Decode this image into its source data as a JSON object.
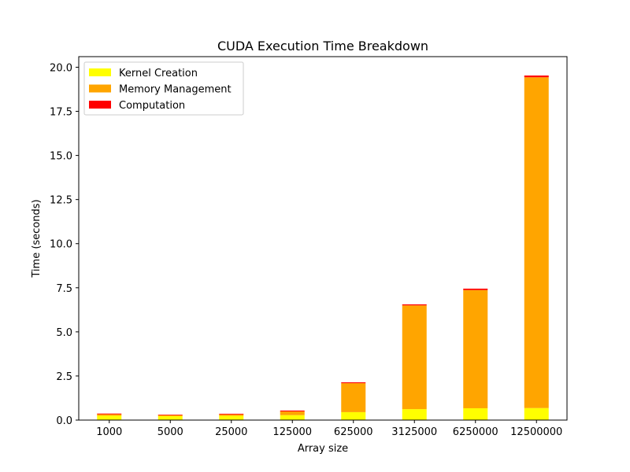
{
  "chart_data": {
    "type": "bar",
    "stacked": true,
    "title": "CUDA Execution Time Breakdown",
    "xlabel": "Array size",
    "ylabel": "Time (seconds)",
    "ylim": [
      0,
      20.6
    ],
    "yticks": [
      0.0,
      2.5,
      5.0,
      7.5,
      10.0,
      12.5,
      15.0,
      17.5,
      20.0
    ],
    "ytick_labels": [
      "0.0",
      "2.5",
      "5.0",
      "7.5",
      "10.0",
      "12.5",
      "15.0",
      "17.5",
      "20.0"
    ],
    "categories": [
      "1000",
      "5000",
      "25000",
      "125000",
      "625000",
      "3125000",
      "6250000",
      "12500000"
    ],
    "series": [
      {
        "name": "Kernel Creation",
        "color": "#ffff00",
        "values": [
          0.25,
          0.22,
          0.24,
          0.28,
          0.45,
          0.62,
          0.67,
          0.68
        ]
      },
      {
        "name": "Memory Management",
        "color": "#ffa500",
        "values": [
          0.08,
          0.06,
          0.08,
          0.21,
          1.64,
          5.88,
          6.7,
          18.75
        ]
      },
      {
        "name": "Computation",
        "color": "#ff0000",
        "values": [
          0.04,
          0.03,
          0.04,
          0.05,
          0.05,
          0.06,
          0.08,
          0.1
        ]
      }
    ],
    "legend_position": "upper-left",
    "grid": false
  }
}
